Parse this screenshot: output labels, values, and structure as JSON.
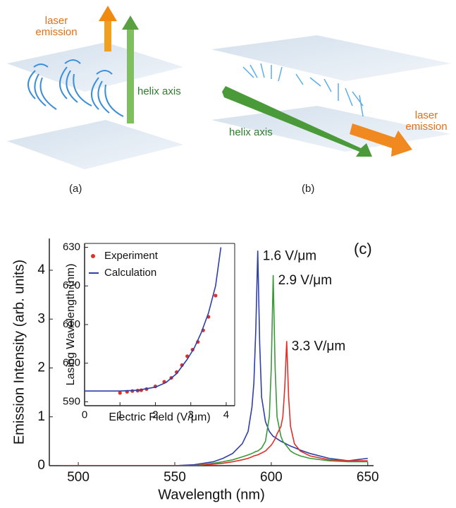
{
  "diagram": {
    "panels": [
      {
        "label": "(a)",
        "laser": "laser emission",
        "helix": "helix axis"
      },
      {
        "label": "(b)",
        "laser": "laser emission",
        "helix": "helix axis"
      }
    ]
  },
  "chart_data": [
    {
      "type": "line",
      "annotation": "(c)",
      "x_label": "Wavelength (nm)",
      "y_label": "Emission Intensity (arb. units)",
      "xlim": [
        485,
        653
      ],
      "xticks": [
        500,
        550,
        600,
        650
      ],
      "ylim": [
        0,
        4.65
      ],
      "yticks": [
        0,
        1,
        2,
        3,
        4
      ],
      "x": [
        490,
        500,
        510,
        520,
        530,
        540,
        550,
        560,
        570,
        575,
        580,
        585,
        588,
        590,
        591,
        592,
        593,
        594,
        595,
        597,
        599,
        600,
        601,
        602,
        603,
        605,
        606,
        607,
        608,
        609,
        610,
        612,
        615,
        620,
        630,
        640,
        650
      ],
      "series": [
        {
          "name": "1.6 V/μm",
          "color": "#2e3fa8",
          "values": [
            0,
            0,
            0,
            0,
            0,
            0,
            0,
            0.02,
            0.08,
            0.15,
            0.25,
            0.45,
            0.7,
            1.2,
            1.7,
            2.8,
            4.4,
            2.5,
            1.4,
            0.9,
            0.7,
            0.65,
            0.6,
            0.58,
            0.55,
            0.5,
            0.48,
            0.46,
            0.44,
            0.42,
            0.4,
            0.37,
            0.32,
            0.25,
            0.15,
            0.1,
            0.15
          ]
        },
        {
          "name": "2.9 V/μm",
          "color": "#3a9a3a",
          "values": [
            0,
            0,
            0,
            0,
            0,
            0,
            0,
            0,
            0.05,
            0.08,
            0.12,
            0.18,
            0.22,
            0.25,
            0.27,
            0.29,
            0.3,
            0.33,
            0.36,
            0.5,
            1.0,
            2.0,
            3.9,
            2.0,
            1.0,
            0.6,
            0.5,
            0.45,
            0.4,
            0.35,
            0.3,
            0.25,
            0.2,
            0.15,
            0.1,
            0.08,
            0.08
          ]
        },
        {
          "name": "3.3 V/μm",
          "color": "#e0302a",
          "values": [
            0,
            0,
            0,
            0,
            0,
            0,
            0,
            0,
            0.03,
            0.05,
            0.08,
            0.12,
            0.15,
            0.18,
            0.2,
            0.21,
            0.22,
            0.24,
            0.26,
            0.3,
            0.38,
            0.42,
            0.48,
            0.55,
            0.65,
            0.8,
            1.0,
            1.6,
            2.55,
            1.4,
            0.8,
            0.45,
            0.3,
            0.2,
            0.12,
            0.1,
            0.1
          ]
        }
      ]
    },
    {
      "type": "scatter",
      "legend": "upper left",
      "x_label": "Electric Field (V/μm)",
      "y_label": "Lasing Wavelength (nm)",
      "xlim": [
        0,
        4.24
      ],
      "xticks": [
        0,
        1,
        2,
        3,
        4
      ],
      "ylim": [
        589,
        631
      ],
      "yticks": [
        590,
        600,
        610,
        620,
        630
      ],
      "series": [
        {
          "name": "Experiment",
          "type": "scatter",
          "color": "#e0302a",
          "x": [
            1.0,
            1.2,
            1.35,
            1.5,
            1.6,
            1.75,
            2.0,
            2.25,
            2.45,
            2.6,
            2.75,
            2.9,
            3.05,
            3.2,
            3.35,
            3.5,
            3.7
          ],
          "values": [
            592.3,
            592.6,
            592.8,
            592.9,
            593,
            593.3,
            594,
            595.2,
            596.2,
            597.7,
            599.5,
            601.8,
            603.5,
            605.5,
            608.5,
            612,
            617.5
          ]
        },
        {
          "name": "Calculation",
          "type": "line",
          "color": "#2e3fa8",
          "x": [
            0,
            0.5,
            1,
            1.5,
            2,
            2.3,
            2.6,
            2.9,
            3.1,
            3.3,
            3.5,
            3.7,
            3.85
          ],
          "values": [
            592.8,
            592.8,
            592.8,
            593,
            593.8,
            595,
            597.3,
            601,
            604,
            608,
            613,
            620,
            630
          ]
        }
      ]
    }
  ]
}
